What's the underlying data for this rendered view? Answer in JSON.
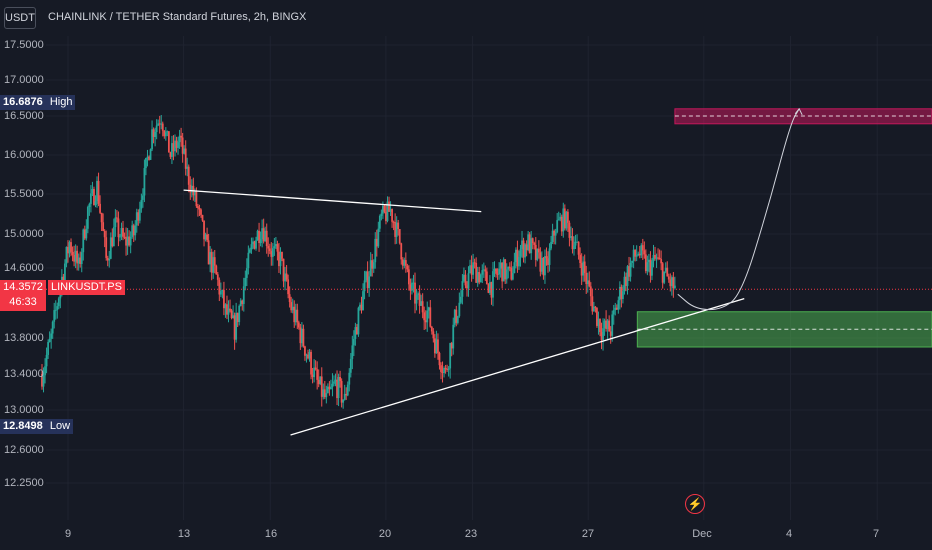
{
  "header": {
    "currency": "USDT",
    "title": "CHAINLINK / TETHER Standard Futures, 2h, BINGX"
  },
  "y_axis": {
    "ticks": [
      "17.5000",
      "17.0000",
      "16.5000",
      "16.0000",
      "15.5000",
      "15.0000",
      "14.6000",
      "13.8000",
      "13.4000",
      "13.0000",
      "12.6000",
      "12.2500"
    ]
  },
  "x_axis": {
    "ticks": [
      "9",
      "13",
      "16",
      "20",
      "23",
      "27",
      "Dec",
      "4",
      "7"
    ]
  },
  "badges": {
    "high_value": "16.6876",
    "high_label": "High",
    "low_value": "12.8498",
    "low_label": "Low",
    "current_price": "14.3572",
    "countdown": "46:33",
    "symbol": "LINKUSDT.PS"
  },
  "icons": {
    "flash": "flash-icon"
  },
  "colors": {
    "background": "#161a25",
    "up": "#26a69a",
    "down": "#ef5350",
    "resistance_zone": "#c2185b",
    "support_zone": "#4caf50",
    "trendline": "#ffffff",
    "current_price": "#f23645"
  },
  "chart_data": {
    "type": "candlestick",
    "title": "CHAINLINK / TETHER Standard Futures, 2h, BINGX",
    "ylim": [
      12.1,
      17.8
    ],
    "x_labels": [
      "9",
      "13",
      "16",
      "20",
      "23",
      "27",
      "Dec",
      "4",
      "7"
    ],
    "high": 16.6876,
    "low": 12.8498,
    "last": 14.3572,
    "close_path": [
      13.4,
      13.8,
      14.4,
      14.9,
      14.6,
      15.3,
      15.6,
      14.7,
      15.1,
      14.9,
      15.0,
      15.6,
      16.3,
      16.5,
      16.0,
      16.2,
      15.7,
      15.3,
      14.8,
      14.5,
      14.1,
      13.9,
      14.4,
      14.9,
      15.1,
      14.8,
      14.7,
      14.2,
      13.9,
      13.6,
      13.3,
      13.1,
      13.3,
      13.1,
      13.8,
      14.3,
      14.7,
      15.2,
      15.3,
      14.9,
      14.4,
      14.2,
      14.1,
      13.7,
      13.4,
      14.0,
      14.4,
      14.6,
      14.5,
      14.4,
      14.6,
      14.5,
      14.8,
      14.9,
      14.7,
      14.6,
      15.1,
      15.2,
      14.9,
      14.6,
      14.2,
      13.9,
      13.9,
      14.3,
      14.6,
      14.8,
      14.6,
      14.7,
      14.5,
      14.36
    ],
    "trendlines": [
      {
        "from": [
          13.0,
          15.55
        ],
        "to": [
          23.3,
          15.28
        ],
        "label": ""
      },
      {
        "from": [
          16.7,
          12.75
        ],
        "to": [
          32.4,
          14.25
        ],
        "label": ""
      }
    ],
    "zones": [
      {
        "name": "resistance",
        "from_x": 30.0,
        "to_x": 39.0,
        "y_top": 16.6,
        "y_bottom": 16.4,
        "mid": 16.5
      },
      {
        "name": "support",
        "from_x": 28.7,
        "to_x": 39.0,
        "y_top": 14.1,
        "y_bottom": 13.7,
        "mid": 13.9
      }
    ],
    "projection": [
      [
        30.1,
        14.3
      ],
      [
        30.7,
        14.13
      ],
      [
        31.6,
        14.12
      ],
      [
        32.3,
        14.3
      ],
      [
        33.2,
        15.3
      ],
      [
        34.0,
        16.4
      ],
      [
        34.3,
        16.6
      ]
    ]
  }
}
